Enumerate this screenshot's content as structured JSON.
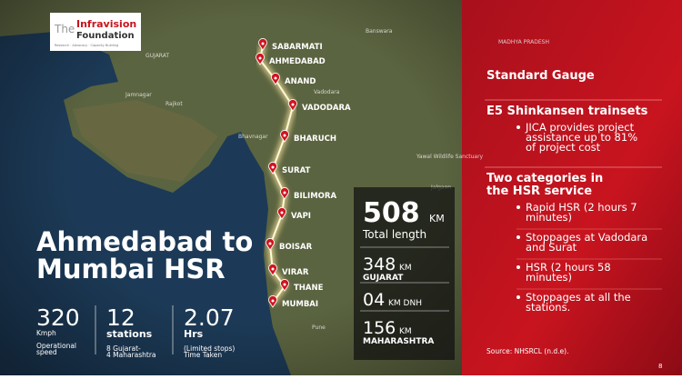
{
  "logo": {
    "the": "The",
    "name1": "Infravision",
    "name2": "Foundation",
    "tagline": "Research · Advocacy · Capacity Building"
  },
  "map": {
    "labels": [
      "GUJARAT",
      "Jamnagar",
      "Rajkot",
      "Bhavnagar",
      "Banswara",
      "Jalgaon",
      "Pune",
      "MADHYA PRADESH",
      "Yawal Wildlife Sanctuary",
      "Vadodara"
    ],
    "stations": [
      "SABARMATI",
      "AHMEDABAD",
      "ANAND",
      "VADODARA",
      "BHARUCH",
      "SURAT",
      "BILIMORA",
      "VAPI",
      "BOISAR",
      "VIRAR",
      "THANE",
      "MUMBAI"
    ]
  },
  "title": [
    "Ahmedabad to",
    "Mumbai HSR"
  ],
  "stats": [
    {
      "value": "320",
      "lines": [
        "Kmph",
        "Operational",
        "speed"
      ]
    },
    {
      "value": "12",
      "lines": [
        "stations",
        "8 Gujarat-",
        "4 Maharashtra"
      ]
    },
    {
      "value": "2.07",
      "lines": [
        "Hrs",
        "(Limited stops)",
        "Time Taken"
      ]
    }
  ],
  "length_box": {
    "total": "508",
    "total_unit": "KM",
    "total_label": "Total length",
    "parts": [
      {
        "value": "348",
        "unit": "KM",
        "label": "GUJARAT"
      },
      {
        "value": "04",
        "unit": "KM DNH",
        "label": ""
      },
      {
        "value": "156",
        "unit": "KM",
        "label": "MAHARASHTRA"
      }
    ]
  },
  "panel": {
    "items": [
      {
        "heading": [
          "Standard Gauge"
        ],
        "bullets": []
      },
      {
        "heading": [
          "E5 Shinkansen trainsets"
        ],
        "bullets": [
          [
            "JICA provides project",
            "assistance up to 81%",
            "of project cost"
          ]
        ]
      },
      {
        "heading": [
          "Two categories in",
          "the HSR service"
        ],
        "bullets": [
          [
            "Rapid HSR (2 hours 7",
            "minutes)"
          ],
          [
            "Stoppages at Vadodara",
            "and Surat"
          ],
          [
            "HSR (2 hours 58",
            "minutes)"
          ],
          [
            "Stoppages at all the",
            "stations."
          ]
        ]
      }
    ],
    "source": "Source: NHSRCL (n.d.e).",
    "page": "8"
  }
}
